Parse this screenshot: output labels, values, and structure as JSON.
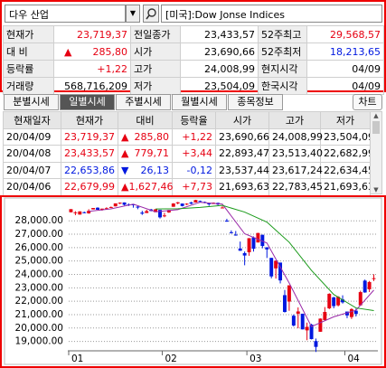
{
  "header": {
    "search": "다우 산업",
    "index_name": "[미국]:Dow Jonse Indices"
  },
  "colors": {
    "up": "#e60012",
    "down": "#0018e0"
  },
  "quote": {
    "rows": [
      [
        {
          "label": "현재가",
          "value": "23,719,37",
          "tone": "up"
        },
        {
          "label": "전일종가",
          "value": "23,433,57"
        },
        {
          "label": "52주최고",
          "value": "29,568,57",
          "tone": "up"
        }
      ],
      [
        {
          "label": "대 비",
          "arrow": "▲",
          "value": "285,80",
          "tone": "up"
        },
        {
          "label": "시가",
          "value": "23,690,66"
        },
        {
          "label": "52주최저",
          "value": "18,213,65",
          "tone": "down"
        }
      ],
      [
        {
          "label": "등락률",
          "value": "+1,22",
          "tone": "up"
        },
        {
          "label": "고가",
          "value": "24,008,99"
        },
        {
          "label": "현지시각",
          "value": "04/09"
        }
      ],
      [
        {
          "label": "거래량",
          "value": "568,716,209"
        },
        {
          "label": "저가",
          "value": "23,504,09"
        },
        {
          "label": "한국시각",
          "value": "04/09"
        }
      ]
    ]
  },
  "tabs": [
    "분별시세",
    "일별시세",
    "주별시세",
    "월별시세",
    "종목정보"
  ],
  "active_tab": 1,
  "chart_button": "차트",
  "table": {
    "headers": [
      "현재일자",
      "현재가",
      "대비",
      "등락율",
      "시가",
      "고가",
      "저가"
    ],
    "rows": [
      {
        "date": "20/04/09",
        "price": "23,719,37",
        "arrow": "▲",
        "change": "285,80",
        "rate": "+1,22",
        "open": "23,690,66",
        "high": "24,008,99",
        "low": "23,504,09",
        "tone": "up"
      },
      {
        "date": "20/04/08",
        "price": "23,433,57",
        "arrow": "▲",
        "change": "779,71",
        "rate": "+3,44",
        "open": "22,893,47",
        "high": "23,513,40",
        "low": "22,682,99",
        "tone": "up"
      },
      {
        "date": "20/04/07",
        "price": "22,653,86",
        "arrow": "▼",
        "change": "26,13",
        "rate": "-0,12",
        "open": "23,537,44",
        "high": "23,617,24",
        "low": "22,634,45",
        "tone": "down"
      },
      {
        "date": "20/04/06",
        "price": "22,679,99",
        "arrow": "▲",
        "change": "1,627,46",
        "rate": "+7,73",
        "open": "21,693,63",
        "high": "22,783,45",
        "low": "21,693,63",
        "tone": "up"
      }
    ]
  },
  "chart_data": {
    "type": "candlestick",
    "grid": true,
    "categories": [
      "01",
      null,
      null,
      null,
      null,
      null,
      null,
      null,
      null,
      null,
      null,
      null,
      null,
      null,
      null,
      null,
      null,
      null,
      null,
      null,
      null,
      "02",
      null,
      null,
      null,
      null,
      null,
      null,
      null,
      null,
      null,
      null,
      null,
      null,
      null,
      null,
      null,
      null,
      null,
      null,
      "03",
      null,
      null,
      null,
      null,
      null,
      null,
      null,
      null,
      null,
      null,
      null,
      null,
      null,
      null,
      null,
      null,
      null,
      null,
      null,
      null,
      null,
      "04",
      null,
      null,
      null,
      null,
      null,
      null
    ],
    "open": [
      28639,
      28589,
      28465,
      28640,
      28557,
      28851,
      28977,
      28823,
      28897,
      28975,
      29079,
      29313,
      29369,
      29222,
      29232,
      29054,
      28613,
      28582,
      28846,
      28641,
      28813,
      28350,
      28623,
      29048,
      29301,
      29286,
      29211,
      29374,
      29365,
      29477,
      29408,
      29304,
      29255,
      29334,
      28955,
      28012,
      27145,
      26967,
      25935,
      25591,
      25654,
      26758,
      26383,
      26956,
      26023,
      25234,
      24453,
      24883,
      22453,
      21973,
      20917,
      21072,
      21069,
      19826,
      20254,
      19028,
      19722,
      20596,
      21469,
      22289,
      21694,
      22135,
      21227,
      20819,
      21293,
      21693.63,
      23537.44,
      22893.47,
      23690.66
    ],
    "high": [
      28873,
      28716,
      28708,
      28686,
      28866,
      28958,
      29009,
      28908,
      29010,
      29064,
      29300,
      29374,
      29373,
      29288,
      29235,
      29128,
      28749,
      28823,
      28891,
      28872,
      28814,
      28590,
      28817,
      29318,
      29408,
      29286,
      29307,
      29415,
      29569,
      29510,
      29440,
      29316,
      29371,
      29360,
      29088,
      28150,
      27286,
      27239,
      26451,
      25712,
      26707,
      26831,
      27102,
      26964,
      26027,
      25234,
      25036,
      24883,
      22840,
      23186,
      21016,
      21540,
      21069,
      20405,
      20315,
      19215,
      20715,
      21565,
      22595,
      22327,
      22378,
      22441,
      21227,
      21475,
      21448,
      22783.45,
      23617.24,
      23513.4,
      24008.99
    ],
    "low": [
      28627,
      28418,
      28460,
      28565,
      28528,
      28850,
      28824,
      28755,
      28850,
      28949,
      29072,
      29247,
      29142,
      29106,
      28979,
      28865,
      28440,
      28582,
      28711,
      28663,
      28170,
      28265,
      28594,
      29048,
      29230,
      29072,
      29177,
      29240,
      29365,
      29406,
      29304,
      29112,
      29255,
      29156,
      28941,
      27925,
      27056,
      26892,
      25763,
      24682,
      25391,
      25705,
      26383,
      25950,
      25226,
      23707,
      23690,
      23328,
      21154,
      21285,
      20116,
      19979,
      19898,
      19092,
      19152,
      18214,
      19722,
      20534,
      21410,
      21470,
      21611,
      21823,
      20736,
      20676,
      20863,
      21693.63,
      22634.45,
      22682.99,
      23504.09
    ],
    "close": [
      28868,
      28634,
      28703,
      28583,
      28745,
      28957,
      28824,
      28907,
      28940,
      29030,
      29298,
      29348,
      29196,
      29186,
      29160,
      28990,
      28535,
      28723,
      28734,
      28859,
      28256,
      28400,
      28808,
      29291,
      29380,
      29103,
      29276,
      29276,
      29551,
      29424,
      29398,
      29232,
      29348,
      29220,
      28992,
      27961,
      27081,
      26957,
      25766,
      25409,
      26703,
      25917,
      27091,
      26121,
      25865,
      23851,
      25018,
      23553,
      21200,
      23186,
      20189,
      21237,
      19899,
      20087,
      19174,
      18592,
      20704,
      21200,
      22552,
      21637,
      22327,
      21917,
      20943,
      21413,
      21053,
      22679.99,
      22653.86,
      23433.57,
      23719.37
    ],
    "lines": [
      {
        "color": "#9a2aa8",
        "x": [
          4,
          9,
          14,
          19,
          24,
          29,
          34,
          39,
          44,
          49,
          54,
          59,
          64,
          68
        ],
        "values": [
          28707,
          28892,
          29246,
          28670,
          28830,
          29383,
          29243,
          27035,
          26345,
          23356,
          20106,
          20837,
          21331,
          22828
        ]
      },
      {
        "color": "#1a9a1a",
        "x": [
          19,
          24,
          29,
          34,
          39,
          44,
          49,
          54,
          59,
          64,
          68
        ],
        "values": [
          28880,
          28900,
          29000,
          29150,
          28650,
          27900,
          26400,
          24300,
          22500,
          21500,
          21300
        ]
      }
    ],
    "ylim": [
      18300,
      29700
    ],
    "yticks": [
      {
        "value": 19000,
        "label": "19,000.00"
      },
      {
        "value": 20000,
        "label": "20,000.00"
      },
      {
        "value": 21000,
        "label": "21,000.00"
      },
      {
        "value": 22000,
        "label": "22,000.00"
      },
      {
        "value": 23000,
        "label": "23,000.00"
      },
      {
        "value": 24000,
        "label": "24,000.00"
      },
      {
        "value": 25000,
        "label": "25,000.00"
      },
      {
        "value": 26000,
        "label": "26,000.00"
      },
      {
        "value": 27000,
        "label": "27,000.00"
      },
      {
        "value": 28000,
        "label": "28,000.00"
      }
    ]
  }
}
